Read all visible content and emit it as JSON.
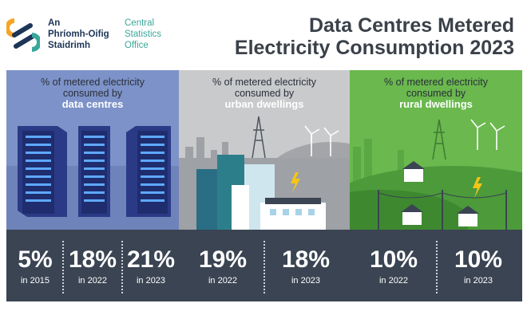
{
  "logo": {
    "irish_lines": [
      "An",
      "Phríomh-Oifig",
      "Staidrimh"
    ],
    "english_lines": [
      "Central",
      "Statistics",
      "Office"
    ],
    "colors": {
      "orange": "#f5a623",
      "teal": "#3aa79a",
      "navy": "#1d3557"
    }
  },
  "title_lines": [
    "Data Centres Metered",
    "Electricity Consumption 2023"
  ],
  "panels": [
    {
      "caption_lines": [
        "% of metered electricity",
        "consumed by"
      ],
      "subject": "data centres",
      "bg": "#7d92c8",
      "stats": [
        {
          "value": "5%",
          "label": "in 2015"
        },
        {
          "value": "18%",
          "label": "in 2022"
        },
        {
          "value": "21%",
          "label": "in 2023"
        }
      ]
    },
    {
      "caption_lines": [
        "% of metered electricity",
        "consumed by"
      ],
      "subject": "urban dwellings",
      "bg": "#c9cacc",
      "stats": [
        {
          "value": "19%",
          "label": "in 2022"
        },
        {
          "value": "18%",
          "label": "in 2023"
        }
      ]
    },
    {
      "caption_lines": [
        "% of metered electricity",
        "consumed by"
      ],
      "subject": "rural dwellings",
      "bg": "#6ab84e",
      "stats": [
        {
          "value": "10%",
          "label": "in 2022"
        },
        {
          "value": "10%",
          "label": "in 2023"
        }
      ]
    }
  ],
  "stats_bar_color": "#3a4452"
}
